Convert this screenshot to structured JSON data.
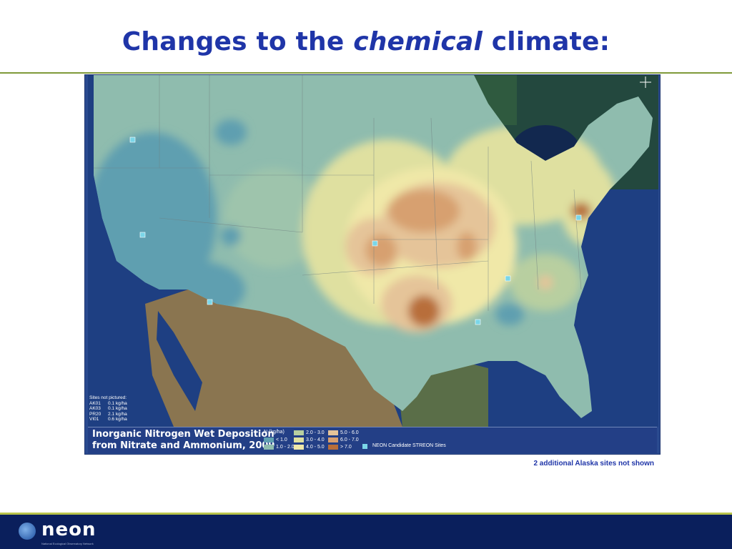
{
  "slide": {
    "title_part1": "Changes to the ",
    "title_italic": "chemical",
    "title_part2": " climate:"
  },
  "map": {
    "legend_title": "Inorganic Nitrogen Wet Deposition\nfrom Nitrate and Ammonium, 2009",
    "legend_unit": "N (kg/ha)",
    "legend_classes": [
      {
        "label": "< 1.0",
        "color": "#5f9fb0"
      },
      {
        "label": "1.0 - 2.0",
        "color": "#8fbcae"
      },
      {
        "label": "2.0 - 3.0",
        "color": "#b8cfa0"
      },
      {
        "label": "3.0 - 4.0",
        "color": "#dfe0a0"
      },
      {
        "label": "4.0 - 5.0",
        "color": "#f0e8a8"
      },
      {
        "label": "5.0 - 6.0",
        "color": "#e5c499"
      },
      {
        "label": "6.0 - 7.0",
        "color": "#d7a070"
      },
      {
        "label": "> 7.0",
        "color": "#b86e3a"
      }
    ],
    "site_legend_label": "NEON Candidate STREON Sites",
    "not_pictured_title": "Sites not pictured:",
    "not_pictured": [
      {
        "code": "AK01",
        "value": "0.1 kg/ha"
      },
      {
        "code": "AK03",
        "value": "0.1 kg/ha"
      },
      {
        "code": "PR20",
        "value": "2.1 kg/ha"
      },
      {
        "code": "VI01",
        "value": "0.6 kg/ha"
      }
    ],
    "site_color": "#7ad6e8"
  },
  "note": {
    "alaska": "2 additional Alaska sites not shown"
  },
  "footer": {
    "logo_text": "neon",
    "logo_subtitle": "National Ecological Observatory Network"
  }
}
